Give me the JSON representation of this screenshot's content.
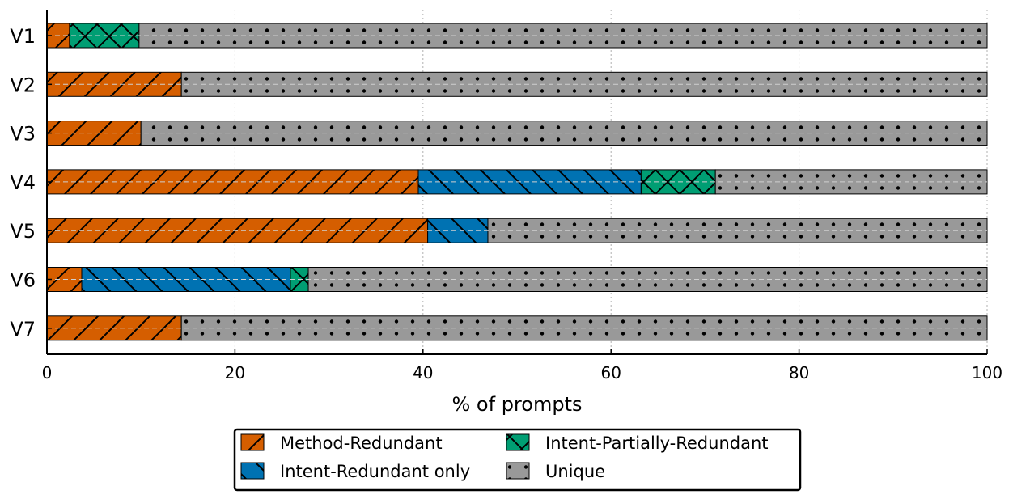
{
  "chart_data": {
    "type": "bar",
    "orientation": "horizontal",
    "stacked": true,
    "title": "",
    "xlabel": "% of prompts",
    "ylabel": "",
    "xlim": [
      0,
      100
    ],
    "xticks": [
      0,
      20,
      40,
      60,
      80,
      100
    ],
    "grid": true,
    "legend_position": "bottom",
    "categories": [
      "V1",
      "V2",
      "V3",
      "V4",
      "V5",
      "V6",
      "V7"
    ],
    "series": [
      {
        "name": "Method-Redundant",
        "color": "#d55e00",
        "hatch": "forward-slash",
        "values": [
          2.4,
          14.3,
          10.0,
          39.5,
          40.5,
          3.7,
          14.3
        ]
      },
      {
        "name": "Intent-Redundant only",
        "color": "#0072b2",
        "hatch": "back-slash",
        "values": [
          0,
          0,
          0,
          23.7,
          6.4,
          22.2,
          0
        ]
      },
      {
        "name": "Intent-Partially-Redundant",
        "color": "#009e73",
        "hatch": "cross",
        "values": [
          7.4,
          0,
          0,
          7.9,
          0,
          1.9,
          0
        ]
      },
      {
        "name": "Unique",
        "color": "#999999",
        "hatch": "dots",
        "values": [
          90.2,
          85.7,
          90.0,
          28.9,
          53.1,
          72.2,
          85.7
        ]
      }
    ],
    "legend_order": [
      "Method-Redundant",
      "Intent-Partially-Redundant",
      "Intent-Redundant only",
      "Unique"
    ]
  }
}
